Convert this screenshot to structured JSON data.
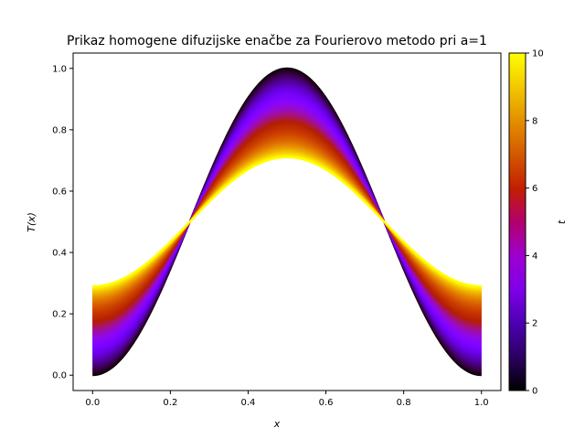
{
  "chart_data": {
    "type": "line",
    "title": "Prikaz homogene difuzijske enačbe za Fourierovo metodo pri a=1",
    "xlabel": "x",
    "ylabel": "T(x)",
    "xlim": [
      -0.05,
      1.05
    ],
    "ylim": [
      -0.05,
      1.05
    ],
    "xticks": [
      0.0,
      0.2,
      0.4,
      0.6,
      0.8,
      1.0
    ],
    "xtick_labels": [
      "0.0",
      "0.2",
      "0.4",
      "0.6",
      "0.8",
      "1.0"
    ],
    "yticks": [
      0.0,
      0.2,
      0.4,
      0.6,
      0.8,
      1.0
    ],
    "ytick_labels": [
      "0.0",
      "0.2",
      "0.4",
      "0.6",
      "0.8",
      "1.0"
    ],
    "grid": false,
    "series_description": "Family of curves T(x,t) for t from 0 to 10, colored by t",
    "initial_curve": "T(x,0) = sin^2(pi x)",
    "t_range": [
      0,
      10
    ],
    "peak_at_t0": 1.0,
    "peak_at_t10": 0.71,
    "crossing_points": [
      {
        "x": 0.333,
        "y": 0.5
      },
      {
        "x": 0.667,
        "y": 0.5
      }
    ],
    "colorbar": {
      "label": "t",
      "colormap": "gnuplot",
      "range": [
        0,
        10
      ],
      "ticks": [
        0,
        2,
        4,
        6,
        8,
        10
      ],
      "tick_labels": [
        "0",
        "2",
        "4",
        "6",
        "8",
        "10"
      ]
    }
  }
}
